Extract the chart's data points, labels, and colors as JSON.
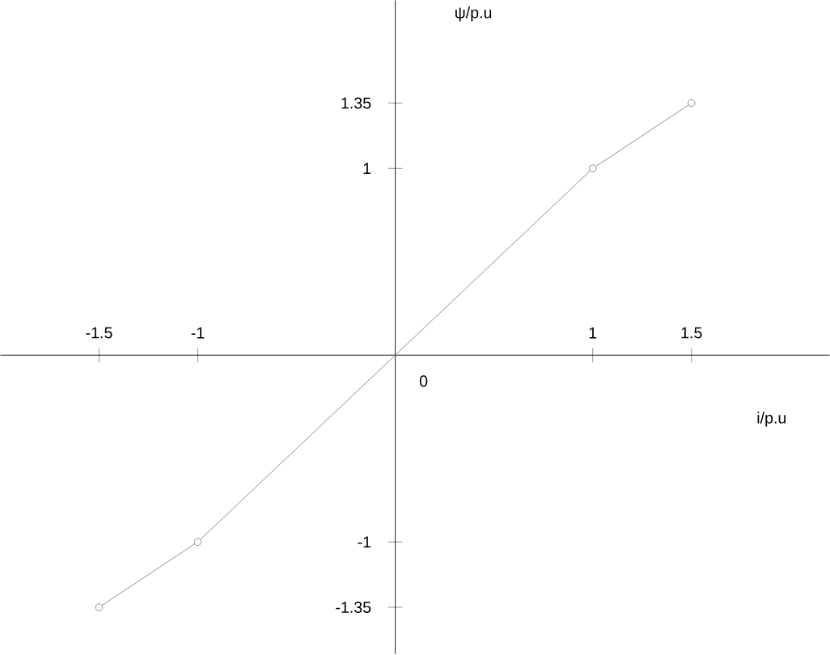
{
  "chart_data": {
    "type": "line",
    "xlabel": "i/p.u",
    "ylabel": "ψ/p.u",
    "x": [
      -1.5,
      -1,
      1,
      1.5
    ],
    "series": [
      {
        "color": "#7f7f7f",
        "values": [
          -1.35,
          -1,
          1,
          1.35
        ]
      }
    ],
    "xlim": [
      -2,
      2.2
    ],
    "ylim": [
      -1.6,
      1.9
    ],
    "xticks": [
      -1.5,
      -1,
      1,
      1.5
    ],
    "yticks": [
      -1.35,
      -1,
      1,
      1.35
    ],
    "annotations": [
      "0"
    ],
    "marker": "circle",
    "line_style": "solid"
  }
}
